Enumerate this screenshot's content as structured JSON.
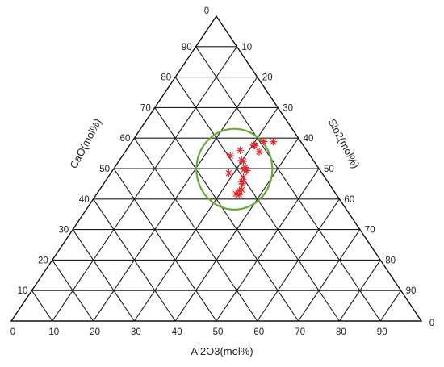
{
  "chart_data": {
    "type": "scatter",
    "subtype": "ternary",
    "title": "",
    "axes": {
      "bottom": {
        "label": "Al2O3(mol%)",
        "ticks": [
          "0",
          "10",
          "20",
          "30",
          "40",
          "50",
          "60",
          "70",
          "80",
          "90"
        ],
        "end_label": "0"
      },
      "left": {
        "label": "CaO(mol%)",
        "ticks": [
          "10",
          "20",
          "30",
          "40",
          "50",
          "60",
          "70",
          "80",
          "90"
        ],
        "apex_label": "0"
      },
      "right": {
        "label": "Sio2(mol%)",
        "ticks": [
          "90",
          "80",
          "70",
          "60",
          "50",
          "40",
          "30",
          "20",
          "10"
        ]
      }
    },
    "grid": true,
    "grid_step": 10,
    "marker": "asterisk",
    "marker_color": "#e8262a",
    "highlight_color": "#6aaa3a",
    "points": [
      {
        "Al2O3": 34.8,
        "CaO": 41.5
      },
      {
        "Al2O3": 33.9,
        "CaO": 41.7
      },
      {
        "Al2O3": 34.2,
        "CaO": 42.8
      },
      {
        "Al2O3": 34.7,
        "CaO": 43.0
      },
      {
        "Al2O3": 33.8,
        "CaO": 45.0
      },
      {
        "Al2O3": 33.4,
        "CaO": 45.7
      },
      {
        "Al2O3": 33.0,
        "CaO": 47.2
      },
      {
        "Al2O3": 32.8,
        "CaO": 49.3
      },
      {
        "Al2O3": 31.9,
        "CaO": 49.7
      },
      {
        "Al2O3": 31.8,
        "CaO": 50.4
      },
      {
        "Al2O3": 28.8,
        "CaO": 48.5
      },
      {
        "Al2O3": 30.4,
        "CaO": 52.4
      },
      {
        "Al2O3": 29.8,
        "CaO": 52.7
      },
      {
        "Al2O3": 26.3,
        "CaO": 54.2
      },
      {
        "Al2O3": 27.8,
        "CaO": 56.0
      },
      {
        "Al2O3": 32.7,
        "CaO": 55.5
      },
      {
        "Al2O3": 30.6,
        "CaO": 57.5
      },
      {
        "Al2O3": 30.3,
        "CaO": 57.7
      },
      {
        "Al2O3": 32.1,
        "CaO": 58.9
      },
      {
        "Al2O3": 34.5,
        "CaO": 58.8
      }
    ],
    "highlight_region": {
      "shape": "ellipse",
      "center": {
        "Al2O3": 29.5,
        "CaO": 49.8
      },
      "semi_axes_mol_percent": [
        18.5,
        26.5
      ]
    }
  }
}
